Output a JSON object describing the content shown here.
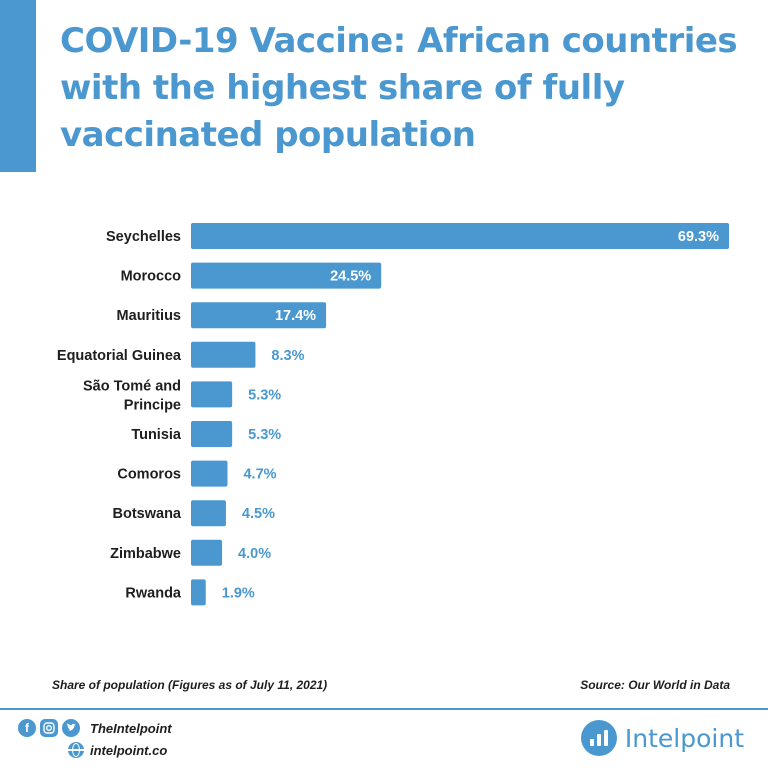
{
  "header": {
    "title": "COVID-19 Vaccine: African countries with the highest share of fully vaccinated population"
  },
  "chart_data": {
    "type": "bar",
    "orientation": "horizontal",
    "categories": [
      [
        "Seychelles"
      ],
      [
        "Morocco"
      ],
      [
        "Mauritius"
      ],
      [
        "Equatorial Guinea"
      ],
      [
        "São Tomé and",
        "Principe"
      ],
      [
        "Tunisia"
      ],
      [
        "Comoros"
      ],
      [
        "Botswana"
      ],
      [
        "Zimbabwe"
      ],
      [
        "Rwanda"
      ]
    ],
    "values": [
      69.3,
      24.5,
      17.4,
      8.3,
      5.3,
      5.3,
      4.7,
      4.5,
      4.0,
      1.9
    ],
    "value_labels": [
      "69.3%",
      "24.5%",
      "17.4%",
      "8.3%",
      "5.3%",
      "5.3%",
      "4.7%",
      "4.5%",
      "4.0%",
      "1.9%"
    ],
    "xlim": [
      0,
      69.3
    ],
    "grid": false,
    "bar_color": "#4a98cf"
  },
  "footnote": {
    "left": "Share of population (Figures as of July 11, 2021)",
    "right": "Source: Our World in Data"
  },
  "footer": {
    "social_icons": [
      "facebook-icon",
      "instagram-icon",
      "twitter-icon"
    ],
    "handle": "TheIntelpoint",
    "website": "intelpoint.co",
    "brand": "Intelpoint"
  },
  "colors": {
    "accent": "#4a98cf",
    "text": "#1e1e1e",
    "background": "#ffffff"
  }
}
